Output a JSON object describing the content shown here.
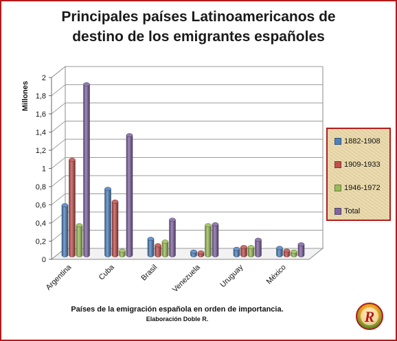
{
  "title_line1": "Principales países Latinoamericanos de",
  "title_line2": "destino de los emigrantes españoles",
  "x_title": "Países de la emigración española en orden de importancia.",
  "credit": "Elaboración Doble R.",
  "logo_label": "R",
  "chart_data": {
    "type": "bar",
    "title": "Principales países Latinoamericanos de destino de los emigrantes españoles",
    "xlabel": "Países de la emigración española en orden de importancia.",
    "ylabel": "Millones",
    "ylim": [
      0,
      2
    ],
    "yticks": [
      "0",
      "0,2",
      "0,4",
      "0,6",
      "0,8",
      "1",
      "1,2",
      "1,4",
      "1,6",
      "1,8",
      "2"
    ],
    "categories": [
      "Argentina",
      "Cuba",
      "Brasil",
      "Venezuela",
      "Uruguay",
      "México"
    ],
    "series": [
      {
        "name": "1882-1908",
        "color": "#4f81bd",
        "values": [
          0.55,
          0.73,
          0.18,
          0.04,
          0.07,
          0.08
        ]
      },
      {
        "name": "1909-1933",
        "color": "#c0504d",
        "values": [
          1.05,
          0.59,
          0.11,
          0.03,
          0.09,
          0.05
        ]
      },
      {
        "name": "1946-1972",
        "color": "#9bbb59",
        "values": [
          0.33,
          0.05,
          0.15,
          0.33,
          0.09,
          0.04
        ]
      },
      {
        "name": "Total",
        "color": "#8064a2",
        "values": [
          1.88,
          1.32,
          0.39,
          0.34,
          0.17,
          0.12
        ]
      }
    ],
    "grid": true,
    "legend": "right",
    "three_d": true
  }
}
